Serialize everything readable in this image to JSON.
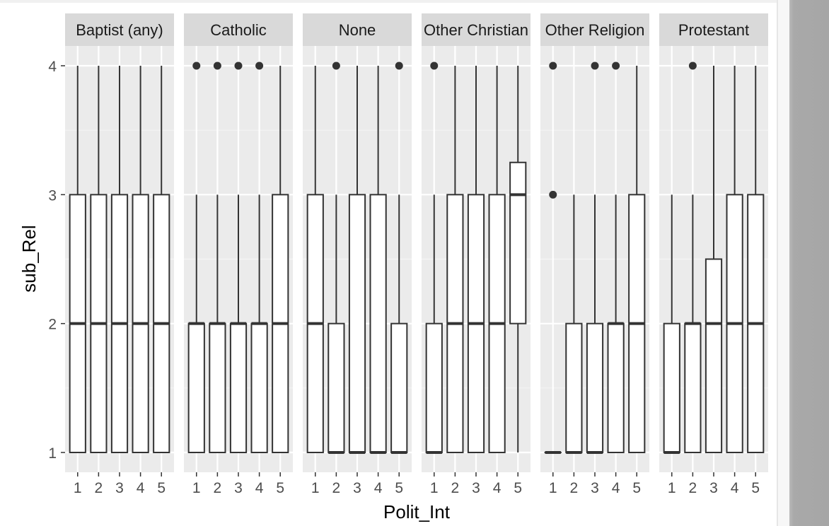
{
  "chart_data": {
    "type": "boxplot",
    "xlabel": "Polit_Int",
    "ylabel": "sub_Rel",
    "ylim": [
      0.85,
      4.15
    ],
    "y_ticks": [
      "1",
      "2",
      "3",
      "4"
    ],
    "categories": [
      "1",
      "2",
      "3",
      "4",
      "5"
    ],
    "grid": true,
    "colors": {
      "panel_bg": "#ebebeb",
      "strip_bg": "#d9d9d9",
      "grid_major": "#ffffff",
      "box_fill": "#ffffff",
      "box_line": "#333333"
    },
    "panels": [
      {
        "name": "Baptist (any)",
        "boxes": [
          {
            "x": "1",
            "min": 1,
            "q1": 1,
            "median": 2,
            "q3": 3,
            "max": 4,
            "outliers": []
          },
          {
            "x": "2",
            "min": 1,
            "q1": 1,
            "median": 2,
            "q3": 3,
            "max": 4,
            "outliers": []
          },
          {
            "x": "3",
            "min": 1,
            "q1": 1,
            "median": 2,
            "q3": 3,
            "max": 4,
            "outliers": []
          },
          {
            "x": "4",
            "min": 1,
            "q1": 1,
            "median": 2,
            "q3": 3,
            "max": 4,
            "outliers": []
          },
          {
            "x": "5",
            "min": 1,
            "q1": 1,
            "median": 2,
            "q3": 3,
            "max": 4,
            "outliers": []
          }
        ]
      },
      {
        "name": "Catholic",
        "boxes": [
          {
            "x": "1",
            "min": 1,
            "q1": 1,
            "median": 2,
            "q3": 2,
            "max": 3,
            "outliers": [
              4
            ]
          },
          {
            "x": "2",
            "min": 1,
            "q1": 1,
            "median": 2,
            "q3": 2,
            "max": 3,
            "outliers": [
              4
            ]
          },
          {
            "x": "3",
            "min": 1,
            "q1": 1,
            "median": 2,
            "q3": 2,
            "max": 3,
            "outliers": [
              4
            ]
          },
          {
            "x": "4",
            "min": 1,
            "q1": 1,
            "median": 2,
            "q3": 2,
            "max": 3,
            "outliers": [
              4
            ]
          },
          {
            "x": "5",
            "min": 1,
            "q1": 1,
            "median": 2,
            "q3": 3,
            "max": 4,
            "outliers": []
          }
        ]
      },
      {
        "name": "None",
        "boxes": [
          {
            "x": "1",
            "min": 1,
            "q1": 1,
            "median": 2,
            "q3": 3,
            "max": 4,
            "outliers": []
          },
          {
            "x": "2",
            "min": 1,
            "q1": 1,
            "median": 1,
            "q3": 2,
            "max": 3,
            "outliers": [
              4
            ]
          },
          {
            "x": "3",
            "min": 1,
            "q1": 1,
            "median": 1,
            "q3": 3,
            "max": 4,
            "outliers": []
          },
          {
            "x": "4",
            "min": 1,
            "q1": 1,
            "median": 1,
            "q3": 3,
            "max": 4,
            "outliers": []
          },
          {
            "x": "5",
            "min": 1,
            "q1": 1,
            "median": 1,
            "q3": 2,
            "max": 3,
            "outliers": [
              4
            ]
          }
        ]
      },
      {
        "name": "Other Christian",
        "boxes": [
          {
            "x": "1",
            "min": 1,
            "q1": 1,
            "median": 1,
            "q3": 2,
            "max": 3,
            "outliers": [
              4
            ]
          },
          {
            "x": "2",
            "min": 1,
            "q1": 1,
            "median": 2,
            "q3": 3,
            "max": 4,
            "outliers": []
          },
          {
            "x": "3",
            "min": 1,
            "q1": 1,
            "median": 2,
            "q3": 3,
            "max": 4,
            "outliers": []
          },
          {
            "x": "4",
            "min": 1,
            "q1": 1,
            "median": 2,
            "q3": 3,
            "max": 4,
            "outliers": []
          },
          {
            "x": "5",
            "min": 1,
            "q1": 2,
            "median": 3,
            "q3": 3.25,
            "max": 4,
            "outliers": []
          }
        ]
      },
      {
        "name": "Other Religion",
        "boxes": [
          {
            "x": "1",
            "min": 1,
            "q1": 1,
            "median": 1,
            "q3": 1,
            "max": 1,
            "outliers": [
              3,
              4
            ]
          },
          {
            "x": "2",
            "min": 1,
            "q1": 1,
            "median": 1,
            "q3": 2,
            "max": 3,
            "outliers": []
          },
          {
            "x": "3",
            "min": 1,
            "q1": 1,
            "median": 1,
            "q3": 2,
            "max": 3,
            "outliers": [
              4
            ]
          },
          {
            "x": "4",
            "min": 1,
            "q1": 1,
            "median": 2,
            "q3": 2,
            "max": 3,
            "outliers": [
              4
            ]
          },
          {
            "x": "5",
            "min": 1,
            "q1": 1,
            "median": 2,
            "q3": 3,
            "max": 4,
            "outliers": []
          }
        ]
      },
      {
        "name": "Protestant",
        "boxes": [
          {
            "x": "1",
            "min": 1,
            "q1": 1,
            "median": 1,
            "q3": 2,
            "max": 3,
            "outliers": []
          },
          {
            "x": "2",
            "min": 1,
            "q1": 1,
            "median": 2,
            "q3": 2,
            "max": 3,
            "outliers": [
              4
            ]
          },
          {
            "x": "3",
            "min": 1,
            "q1": 1,
            "median": 2,
            "q3": 2.5,
            "max": 4,
            "outliers": []
          },
          {
            "x": "4",
            "min": 1,
            "q1": 1,
            "median": 2,
            "q3": 3,
            "max": 4,
            "outliers": []
          },
          {
            "x": "5",
            "min": 1,
            "q1": 1,
            "median": 2,
            "q3": 3,
            "max": 4,
            "outliers": []
          }
        ]
      }
    ]
  }
}
